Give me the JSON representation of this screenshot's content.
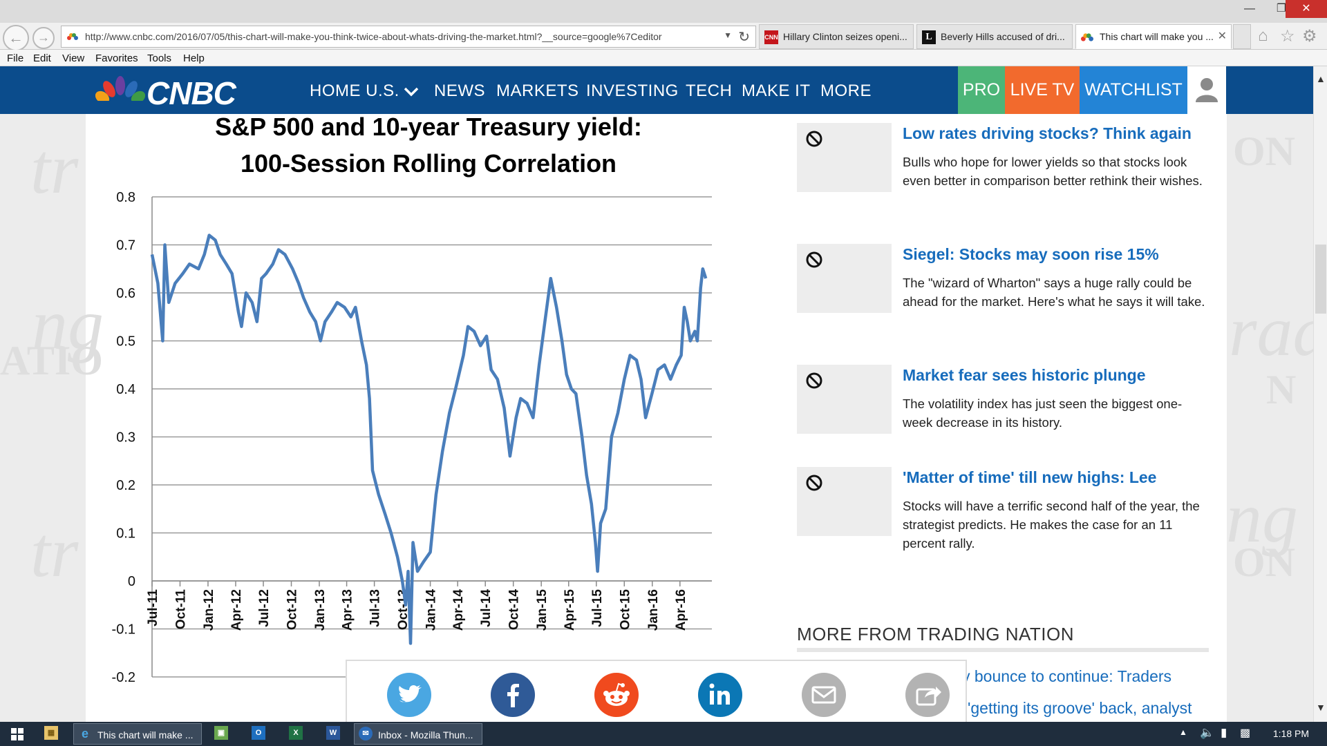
{
  "browser": {
    "url": "http://www.cnbc.com/2016/07/05/this-chart-will-make-you-think-twice-about-whats-driving-the-market.html?__source=google%7Ceditor",
    "tabs": [
      {
        "label": "Hillary Clinton seizes openi...",
        "icon": "cnn-icon",
        "icon_text": "CNN"
      },
      {
        "label": "Beverly Hills accused of dri...",
        "icon": "latimes-icon",
        "icon_text": "L"
      },
      {
        "label": "This chart will make you ...",
        "icon": "cnbc-peacock-icon",
        "active": true
      }
    ],
    "menu": [
      "File",
      "Edit",
      "View",
      "Favorites",
      "Tools",
      "Help"
    ]
  },
  "header": {
    "logo_text": "CNBC",
    "nav": [
      "HOME U.S.",
      "NEWS",
      "MARKETS",
      "INVESTING",
      "TECH",
      "MAKE IT",
      "MORE"
    ],
    "pro": "PRO",
    "live_tv": "LIVE TV",
    "watchlist": "WATCHLIST",
    "colors": {
      "bar": "#0b4c8c",
      "pro": "#4cb578",
      "live": "#f26a2d",
      "watchlist": "#2384d6"
    }
  },
  "stories": [
    {
      "title": "Low rates driving stocks? Think again",
      "desc": "Bulls who hope for lower yields so that stocks look even better in comparison better rethink their wishes."
    },
    {
      "title": "Siegel: Stocks may soon rise 15%",
      "desc": "The \"wizard of Wharton\" says a huge rally could be ahead for the market. Here's what he says it will take."
    },
    {
      "title": "Market fear sees historic plunge",
      "desc": "The volatility index has just seen the biggest one-week decrease in its history."
    },
    {
      "title": "'Matter of time' till new highs: Lee",
      "desc": "Stocks will have a terrific second half of the year, the strategist predicts. He makes the case for an 11 percent rally."
    }
  ],
  "more_from": {
    "heading": "MORE FROM TRADING NATION",
    "items": [
      "y bounce to continue: Traders",
      "'getting its groove' back, analyst"
    ]
  },
  "share": [
    "twitter-icon",
    "facebook-icon",
    "reddit-icon",
    "linkedin-icon",
    "email-icon",
    "share-icon"
  ],
  "watermark": [
    "tr",
    "ng",
    "ATIO",
    "tr",
    "ON",
    "rad",
    "N",
    "ng",
    "ON"
  ],
  "taskbar": {
    "items": [
      {
        "label": "This chart will make ...",
        "icon": "ie-icon"
      },
      {
        "label": "Inbox - Mozilla Thun...",
        "icon": "thunderbird-icon"
      }
    ],
    "clock": "1:18 PM"
  },
  "chart_data": {
    "type": "line",
    "title_line1": "S&P 500 and 10-year Treasury yield:",
    "title_line2": "100-Session Rolling Correlation",
    "x_tick_labels": [
      "Jul-11",
      "Oct-11",
      "Jan-12",
      "Apr-12",
      "Jul-12",
      "Oct-12",
      "Jan-13",
      "Apr-13",
      "Jul-13",
      "Oct-13",
      "Jan-14",
      "Apr-14",
      "Jul-14",
      "Oct-14",
      "Jan-15",
      "Apr-15",
      "Jul-15",
      "Oct-15",
      "Jan-16",
      "Apr-16"
    ],
    "y_tick_labels": [
      "0.8",
      "0.7",
      "0.6",
      "0.5",
      "0.4",
      "0.3",
      "0.2",
      "0.1",
      "0",
      "-0.1",
      "-0.2"
    ],
    "ylim": [
      -0.2,
      0.8
    ],
    "grid": true,
    "color": "#4a7ebb",
    "series": [
      {
        "x": "2011-07-01",
        "y": 0.68
      },
      {
        "x": "2011-07-20",
        "y": 0.62
      },
      {
        "x": "2011-08-05",
        "y": 0.5
      },
      {
        "x": "2011-08-12",
        "y": 0.7
      },
      {
        "x": "2011-08-25",
        "y": 0.58
      },
      {
        "x": "2011-09-15",
        "y": 0.62
      },
      {
        "x": "2011-10-10",
        "y": 0.64
      },
      {
        "x": "2011-11-01",
        "y": 0.66
      },
      {
        "x": "2011-12-01",
        "y": 0.65
      },
      {
        "x": "2011-12-20",
        "y": 0.68
      },
      {
        "x": "2012-01-05",
        "y": 0.72
      },
      {
        "x": "2012-01-25",
        "y": 0.71
      },
      {
        "x": "2012-02-10",
        "y": 0.68
      },
      {
        "x": "2012-03-01",
        "y": 0.66
      },
      {
        "x": "2012-03-20",
        "y": 0.64
      },
      {
        "x": "2012-04-10",
        "y": 0.56
      },
      {
        "x": "2012-04-20",
        "y": 0.53
      },
      {
        "x": "2012-05-05",
        "y": 0.6
      },
      {
        "x": "2012-05-25",
        "y": 0.58
      },
      {
        "x": "2012-06-10",
        "y": 0.54
      },
      {
        "x": "2012-06-25",
        "y": 0.63
      },
      {
        "x": "2012-07-10",
        "y": 0.64
      },
      {
        "x": "2012-08-01",
        "y": 0.66
      },
      {
        "x": "2012-08-20",
        "y": 0.69
      },
      {
        "x": "2012-09-10",
        "y": 0.68
      },
      {
        "x": "2012-10-05",
        "y": 0.65
      },
      {
        "x": "2012-10-25",
        "y": 0.62
      },
      {
        "x": "2012-11-10",
        "y": 0.59
      },
      {
        "x": "2012-12-01",
        "y": 0.56
      },
      {
        "x": "2012-12-20",
        "y": 0.54
      },
      {
        "x": "2013-01-05",
        "y": 0.5
      },
      {
        "x": "2013-01-20",
        "y": 0.54
      },
      {
        "x": "2013-02-10",
        "y": 0.56
      },
      {
        "x": "2013-03-01",
        "y": 0.58
      },
      {
        "x": "2013-03-25",
        "y": 0.57
      },
      {
        "x": "2013-04-15",
        "y": 0.55
      },
      {
        "x": "2013-04-30",
        "y": 0.57
      },
      {
        "x": "2013-05-20",
        "y": 0.5
      },
      {
        "x": "2013-06-05",
        "y": 0.45
      },
      {
        "x": "2013-06-15",
        "y": 0.38
      },
      {
        "x": "2013-06-25",
        "y": 0.23
      },
      {
        "x": "2013-07-15",
        "y": 0.18
      },
      {
        "x": "2013-08-05",
        "y": 0.14
      },
      {
        "x": "2013-08-25",
        "y": 0.1
      },
      {
        "x": "2013-09-15",
        "y": 0.05
      },
      {
        "x": "2013-10-01",
        "y": 0.0
      },
      {
        "x": "2013-10-12",
        "y": -0.05
      },
      {
        "x": "2013-10-20",
        "y": 0.02
      },
      {
        "x": "2013-10-28",
        "y": -0.13
      },
      {
        "x": "2013-11-05",
        "y": 0.08
      },
      {
        "x": "2013-11-20",
        "y": 0.02
      },
      {
        "x": "2013-12-10",
        "y": 0.04
      },
      {
        "x": "2014-01-01",
        "y": 0.06
      },
      {
        "x": "2014-01-20",
        "y": 0.18
      },
      {
        "x": "2014-02-10",
        "y": 0.27
      },
      {
        "x": "2014-03-05",
        "y": 0.35
      },
      {
        "x": "2014-03-25",
        "y": 0.4
      },
      {
        "x": "2014-04-20",
        "y": 0.47
      },
      {
        "x": "2014-05-05",
        "y": 0.53
      },
      {
        "x": "2014-05-25",
        "y": 0.52
      },
      {
        "x": "2014-06-15",
        "y": 0.49
      },
      {
        "x": "2014-07-05",
        "y": 0.51
      },
      {
        "x": "2014-07-20",
        "y": 0.44
      },
      {
        "x": "2014-08-10",
        "y": 0.42
      },
      {
        "x": "2014-09-01",
        "y": 0.36
      },
      {
        "x": "2014-09-20",
        "y": 0.26
      },
      {
        "x": "2014-10-10",
        "y": 0.34
      },
      {
        "x": "2014-10-25",
        "y": 0.38
      },
      {
        "x": "2014-11-15",
        "y": 0.37
      },
      {
        "x": "2014-12-05",
        "y": 0.34
      },
      {
        "x": "2014-12-25",
        "y": 0.45
      },
      {
        "x": "2015-01-15",
        "y": 0.55
      },
      {
        "x": "2015-02-01",
        "y": 0.63
      },
      {
        "x": "2015-02-20",
        "y": 0.57
      },
      {
        "x": "2015-03-10",
        "y": 0.5
      },
      {
        "x": "2015-03-25",
        "y": 0.43
      },
      {
        "x": "2015-04-10",
        "y": 0.4
      },
      {
        "x": "2015-04-25",
        "y": 0.39
      },
      {
        "x": "2015-05-15",
        "y": 0.3
      },
      {
        "x": "2015-05-30",
        "y": 0.22
      },
      {
        "x": "2015-06-15",
        "y": 0.16
      },
      {
        "x": "2015-06-28",
        "y": 0.08
      },
      {
        "x": "2015-07-05",
        "y": 0.02
      },
      {
        "x": "2015-07-15",
        "y": 0.12
      },
      {
        "x": "2015-08-01",
        "y": 0.15
      },
      {
        "x": "2015-08-20",
        "y": 0.3
      },
      {
        "x": "2015-09-10",
        "y": 0.35
      },
      {
        "x": "2015-10-01",
        "y": 0.42
      },
      {
        "x": "2015-10-20",
        "y": 0.47
      },
      {
        "x": "2015-11-10",
        "y": 0.46
      },
      {
        "x": "2015-11-25",
        "y": 0.42
      },
      {
        "x": "2015-12-10",
        "y": 0.34
      },
      {
        "x": "2015-12-31",
        "y": 0.39
      },
      {
        "x": "2016-01-20",
        "y": 0.44
      },
      {
        "x": "2016-02-10",
        "y": 0.45
      },
      {
        "x": "2016-03-01",
        "y": 0.42
      },
      {
        "x": "2016-03-20",
        "y": 0.45
      },
      {
        "x": "2016-04-05",
        "y": 0.47
      },
      {
        "x": "2016-04-15",
        "y": 0.57
      },
      {
        "x": "2016-04-25",
        "y": 0.54
      },
      {
        "x": "2016-05-05",
        "y": 0.5
      },
      {
        "x": "2016-05-20",
        "y": 0.52
      },
      {
        "x": "2016-05-28",
        "y": 0.5
      },
      {
        "x": "2016-06-08",
        "y": 0.61
      },
      {
        "x": "2016-06-15",
        "y": 0.65
      },
      {
        "x": "2016-06-25",
        "y": 0.63
      }
    ]
  }
}
